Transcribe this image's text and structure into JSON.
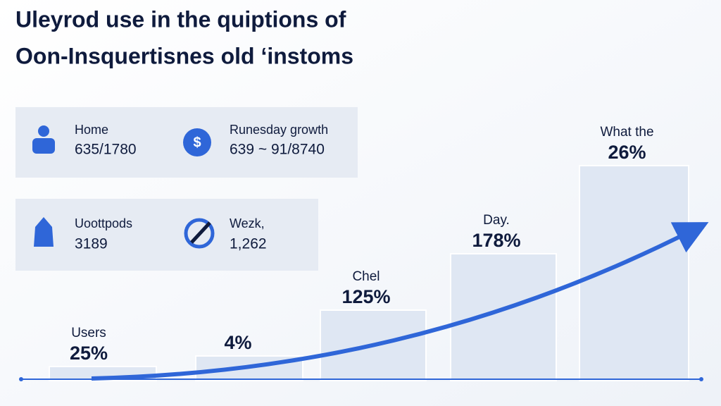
{
  "title": {
    "line1": "Uleyrod use in the quiptions of",
    "line2": "Oon-Insquertisnes old ‘instoms"
  },
  "cards": [
    {
      "items": [
        {
          "label": "Home",
          "value": "635/1780"
        },
        {
          "label": "Runesday growth",
          "value": "639 ~ 91/8740"
        }
      ]
    },
    {
      "items": [
        {
          "label": "Uoottpods",
          "value": "3189"
        },
        {
          "label": "Wezk,",
          "value": "1,262"
        }
      ]
    }
  ],
  "bars": [
    {
      "label": "Users",
      "value": "25%"
    },
    {
      "label": "",
      "value": "4%"
    },
    {
      "label": "Chel",
      "value": "125%"
    },
    {
      "label": "Day.",
      "value": "178%"
    },
    {
      "label": "What the",
      "value": "26%"
    }
  ]
}
